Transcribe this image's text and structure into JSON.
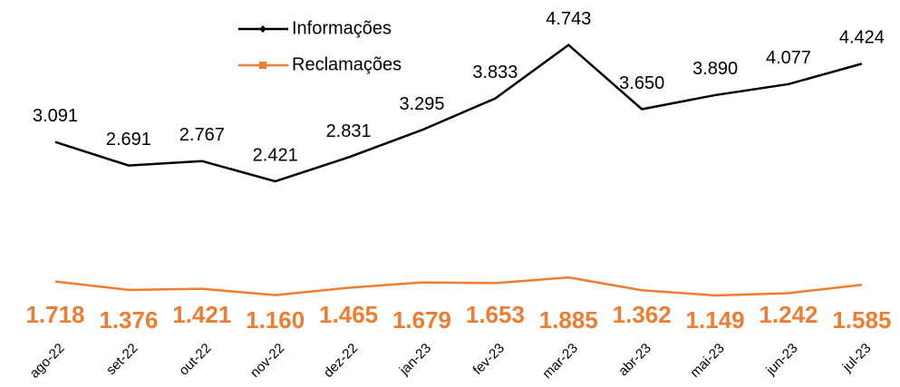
{
  "chart_data": {
    "type": "line",
    "categories": [
      "ago-22",
      "set-22",
      "out-22",
      "nov-22",
      "dez-22",
      "jan-23",
      "fev-23",
      "mar-23",
      "abr-23",
      "mai-23",
      "jun-23",
      "jul-23"
    ],
    "series": [
      {
        "name": "Informações",
        "color": "#000000",
        "values": [
          3091,
          2691,
          2767,
          2421,
          2831,
          3295,
          3833,
          4743,
          3650,
          3890,
          4077,
          4424
        ],
        "value_labels": [
          "3.091",
          "2.691",
          "2.767",
          "2.421",
          "2.831",
          "3.295",
          "3.833",
          "4.743",
          "3.650",
          "3.890",
          "4.077",
          "4.424"
        ]
      },
      {
        "name": "Reclamações",
        "color": "#ed7d31",
        "axis": "y2",
        "values": [
          1718,
          1376,
          1421,
          1160,
          1465,
          1679,
          1653,
          1885,
          1362,
          1149,
          1242,
          1585
        ],
        "value_labels": [
          "1.718",
          "1.376",
          "1.421",
          "1.160",
          "1.465",
          "1.679",
          "1.653",
          "1.885",
          "1.362",
          "1.149",
          "1.242",
          "1.585"
        ]
      }
    ],
    "ylim": [
      0,
      5000
    ],
    "y2lim": [
      0,
      12000
    ],
    "legend": "top"
  }
}
